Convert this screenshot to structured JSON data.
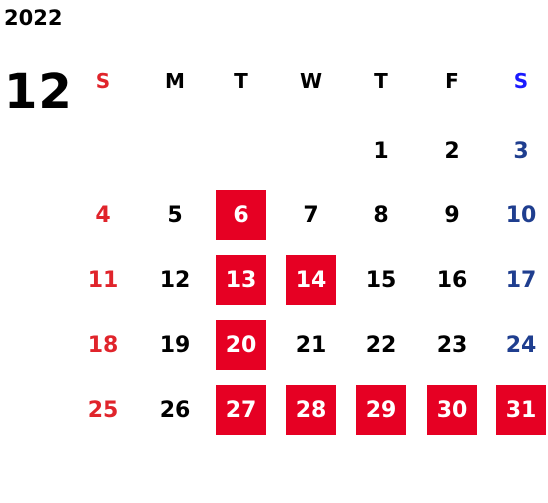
{
  "calendar": {
    "year": "2022",
    "month": "12",
    "weekdays": [
      "S",
      "M",
      "T",
      "W",
      "T",
      "F",
      "S"
    ],
    "colors": {
      "sunday": "#e0242b",
      "saturday": "#1f3e8f",
      "saturday_header": "#1a1aff",
      "highlight_bg": "#e60023",
      "weekday": "#000000"
    },
    "weeks": [
      [
        {
          "day": "",
          "highlight": false
        },
        {
          "day": "",
          "highlight": false
        },
        {
          "day": "",
          "highlight": false
        },
        {
          "day": "",
          "highlight": false
        },
        {
          "day": "1",
          "highlight": false
        },
        {
          "day": "2",
          "highlight": false
        },
        {
          "day": "3",
          "highlight": false
        }
      ],
      [
        {
          "day": "4",
          "highlight": false
        },
        {
          "day": "5",
          "highlight": false
        },
        {
          "day": "6",
          "highlight": true
        },
        {
          "day": "7",
          "highlight": false
        },
        {
          "day": "8",
          "highlight": false
        },
        {
          "day": "9",
          "highlight": false
        },
        {
          "day": "10",
          "highlight": false
        }
      ],
      [
        {
          "day": "11",
          "highlight": false
        },
        {
          "day": "12",
          "highlight": false
        },
        {
          "day": "13",
          "highlight": true
        },
        {
          "day": "14",
          "highlight": true
        },
        {
          "day": "15",
          "highlight": false
        },
        {
          "day": "16",
          "highlight": false
        },
        {
          "day": "17",
          "highlight": false
        }
      ],
      [
        {
          "day": "18",
          "highlight": false
        },
        {
          "day": "19",
          "highlight": false
        },
        {
          "day": "20",
          "highlight": true
        },
        {
          "day": "21",
          "highlight": false
        },
        {
          "day": "22",
          "highlight": false
        },
        {
          "day": "23",
          "highlight": false
        },
        {
          "day": "24",
          "highlight": false
        }
      ],
      [
        {
          "day": "25",
          "highlight": false
        },
        {
          "day": "26",
          "highlight": false
        },
        {
          "day": "27",
          "highlight": true
        },
        {
          "day": "28",
          "highlight": true
        },
        {
          "day": "29",
          "highlight": true
        },
        {
          "day": "30",
          "highlight": true
        },
        {
          "day": "31",
          "highlight": true
        }
      ]
    ]
  }
}
